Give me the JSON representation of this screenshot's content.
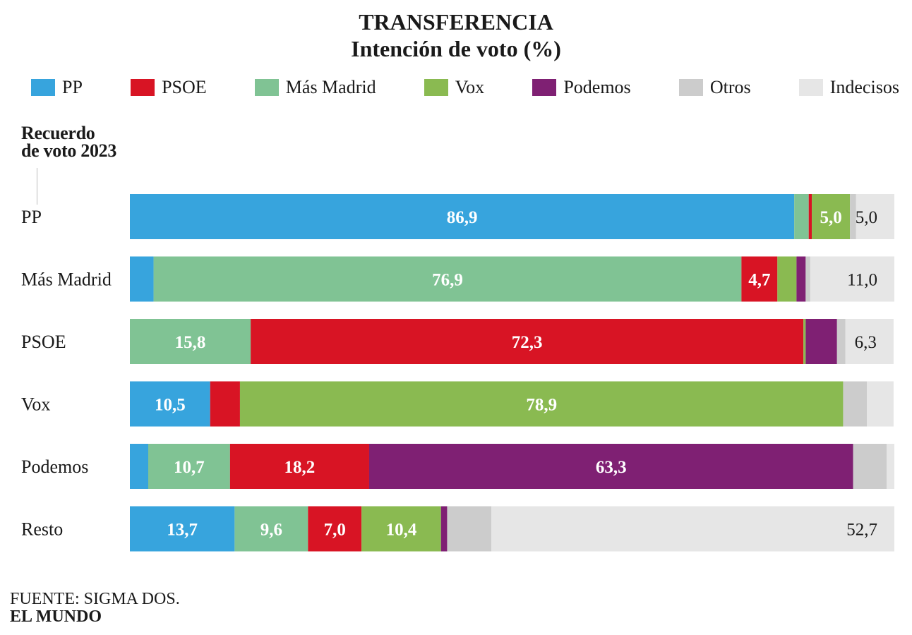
{
  "header": {
    "title": "TRANSFERENCIA",
    "subtitle": "Intención  de voto (%)"
  },
  "legend": [
    {
      "label": "PP",
      "color": "#37a4dd"
    },
    {
      "label": "PSOE",
      "color": "#d81424"
    },
    {
      "label": "Más Madrid",
      "color": "#80c394"
    },
    {
      "label": "Vox",
      "color": "#8aba51"
    },
    {
      "label": "Podemos",
      "color": "#7f2073"
    },
    {
      "label": "Otros",
      "color": "#cccccc"
    },
    {
      "label": "Indecisos",
      "color": "#e6e6e6"
    }
  ],
  "footer": {
    "source": "FUENTE: SIGMA DOS.",
    "brand": "EL MUNDO"
  },
  "chart_data": {
    "type": "bar",
    "orientation": "horizontal",
    "stacked": true,
    "title": "TRANSFERENCIA",
    "subtitle": "Intención  de voto (%)",
    "ylabel": "Recuerdo de voto 2023",
    "xlim": [
      0,
      100
    ],
    "grid": false,
    "legend_position": "top",
    "categories": [
      "PP",
      "Más Madrid",
      "PSOE",
      "Vox",
      "Podemos",
      "Resto"
    ],
    "series": [
      {
        "name": "PP",
        "color": "#37a4dd",
        "values": [
          86.9,
          3.1,
          0.0,
          10.5,
          2.4,
          13.7
        ],
        "labels": [
          "86,9",
          "",
          "",
          "10,5",
          "",
          "13,7"
        ],
        "label_color": "#ffffff"
      },
      {
        "name": "Más Madrid",
        "color": "#80c394",
        "values": [
          1.9,
          76.9,
          15.8,
          0.0,
          10.7,
          9.6
        ],
        "labels": [
          "",
          "76,9",
          "15,8",
          "",
          "10,7",
          "9,6"
        ],
        "label_color": "#ffffff"
      },
      {
        "name": "PSOE",
        "color": "#d81424",
        "values": [
          0.4,
          4.7,
          72.3,
          3.9,
          18.2,
          7.0
        ],
        "labels": [
          "",
          "4,7",
          "72,3",
          "",
          "18,2",
          "7,0"
        ],
        "label_color": "#ffffff"
      },
      {
        "name": "Vox",
        "color": "#8aba51",
        "values": [
          5.0,
          2.5,
          0.3,
          78.9,
          0.0,
          10.4
        ],
        "labels": [
          "5,0",
          "",
          "",
          "78,9",
          "",
          "10,4"
        ],
        "label_color": "#ffffff"
      },
      {
        "name": "Podemos",
        "color": "#7f2073",
        "values": [
          0.0,
          1.2,
          4.1,
          0.0,
          63.3,
          0.8
        ],
        "labels": [
          "",
          "",
          "",
          "",
          "63,3",
          ""
        ],
        "label_color": "#ffffff"
      },
      {
        "name": "Otros",
        "color": "#cccccc",
        "values": [
          0.8,
          0.6,
          1.1,
          3.1,
          4.4,
          5.8
        ],
        "labels": [
          "",
          "",
          "",
          "",
          "",
          ""
        ],
        "label_color": "#1a1a1a"
      },
      {
        "name": "Indecisos",
        "color": "#e6e6e6",
        "values": [
          5.0,
          11.0,
          6.3,
          3.5,
          1.0,
          52.7
        ],
        "labels": [
          "5,0",
          "11,0",
          "6,3",
          "",
          "",
          "52,7"
        ],
        "label_color": "#1a1a1a"
      }
    ]
  }
}
